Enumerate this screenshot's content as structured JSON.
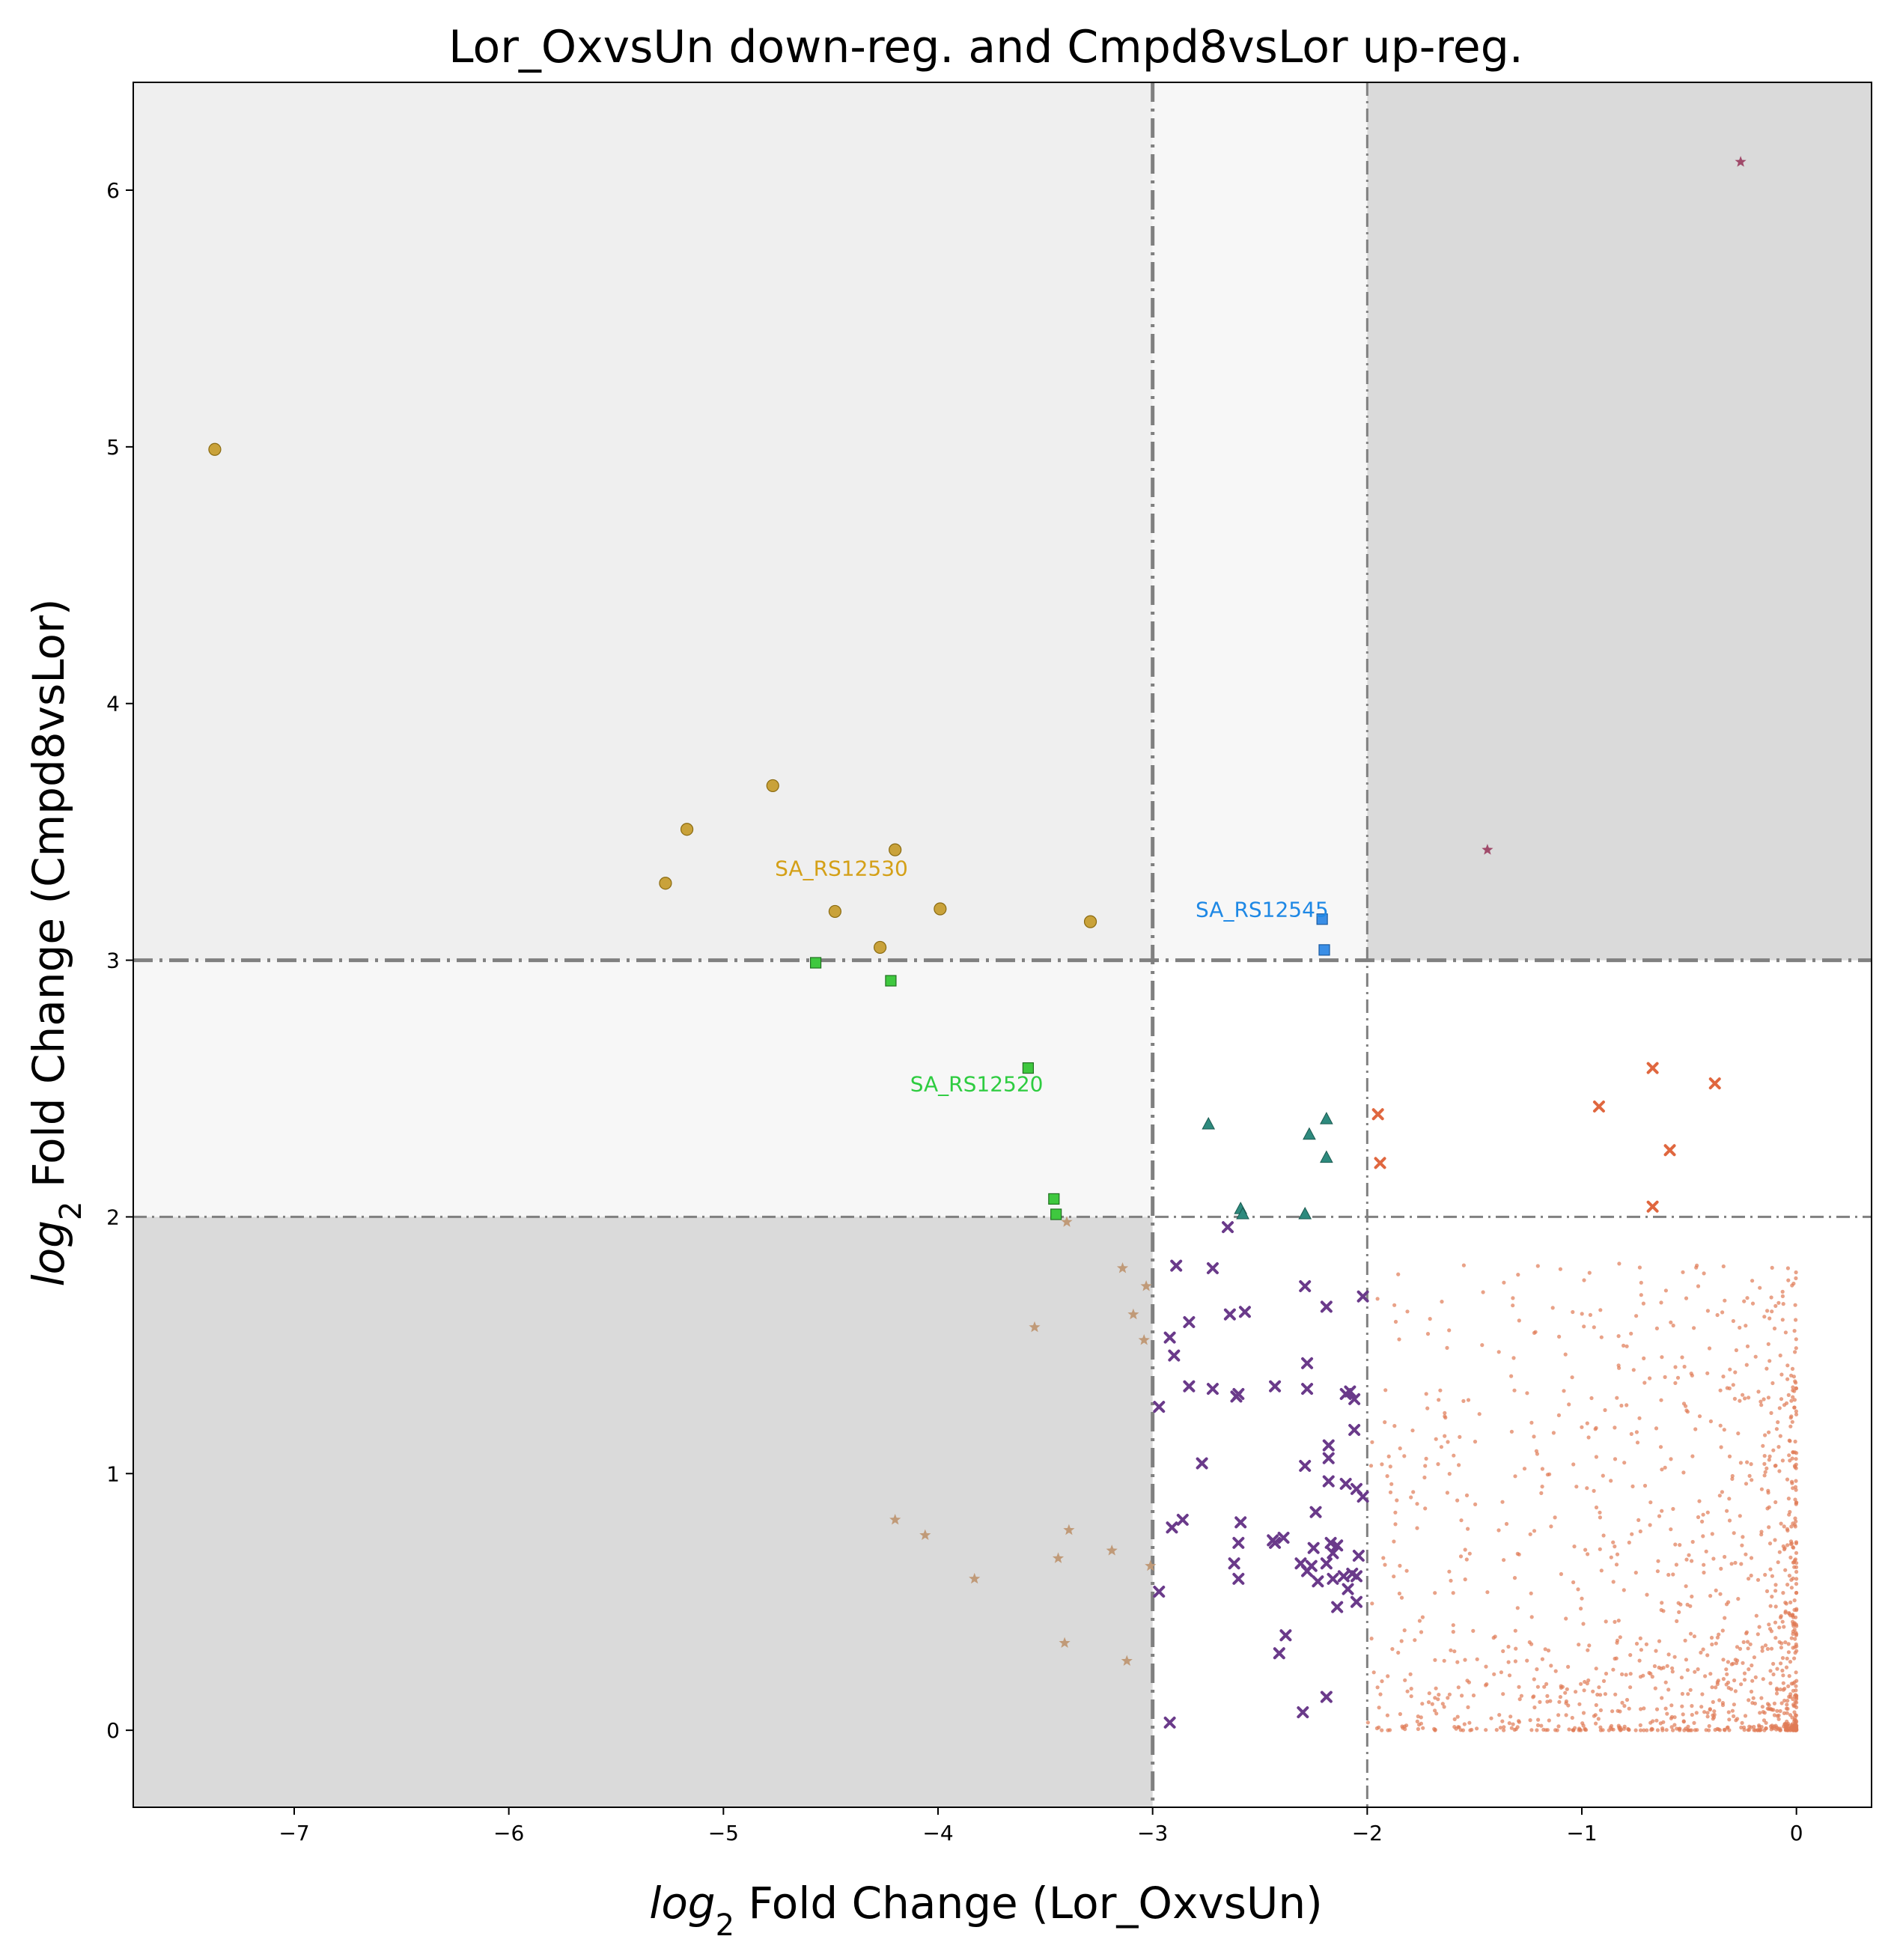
{
  "chart_data": {
    "type": "scatter",
    "title": "Lor_OxvsUn down-reg. and Cmpd8vsLor up-reg.",
    "xlabel_prefix": "log",
    "xlabel_sub": "2",
    "xlabel_rest": " Fold Change (Lor_OxvsUn)",
    "ylabel_prefix": "log",
    "ylabel_sub": "2",
    "ylabel_rest": " Fold Change (Cmpd8vsLor)",
    "xlim": [
      -7.75,
      0.35
    ],
    "ylim": [
      -0.3,
      6.42
    ],
    "x_ticks": [
      -7,
      -6,
      -5,
      -4,
      -3,
      -2,
      -1,
      0
    ],
    "x_tick_labels": [
      "−7",
      "−6",
      "−5",
      "−4",
      "−3",
      "−2",
      "−1",
      "0"
    ],
    "y_ticks": [
      0,
      1,
      2,
      3,
      4,
      5,
      6
    ],
    "y_tick_labels": [
      "0",
      "1",
      "2",
      "3",
      "4",
      "5",
      "6"
    ],
    "grid": false,
    "thresholds": {
      "x_strong": -3,
      "x_weak": -2,
      "y_strong": 3,
      "y_weak": 2
    },
    "regions": [
      {
        "x": [
          -7.75,
          -3
        ],
        "y": [
          2,
          6.42
        ],
        "color": "#efefef"
      },
      {
        "x": [
          -3,
          -2
        ],
        "y": [
          3,
          6.42
        ],
        "color": "#f7f7f7"
      },
      {
        "x": [
          -7.75,
          -3
        ],
        "y": [
          2,
          3
        ],
        "color": "#f7f7f7"
      },
      {
        "x": [
          -2,
          0.35
        ],
        "y": [
          3,
          6.42
        ],
        "color": "#dadada"
      },
      {
        "x": [
          -7.75,
          -3
        ],
        "y": [
          -0.3,
          2
        ],
        "color": "#dadada"
      }
    ],
    "series": [
      {
        "marker": "circle",
        "color": "#c9a23a",
        "edge": "#8a6a10",
        "points": [
          [
            -7.37,
            4.99
          ],
          [
            -4.77,
            3.68
          ],
          [
            -5.17,
            3.51
          ],
          [
            -5.27,
            3.3
          ],
          [
            -4.2,
            3.43
          ],
          [
            -4.48,
            3.19
          ],
          [
            -3.99,
            3.2
          ],
          [
            -4.27,
            3.05
          ],
          [
            -3.29,
            3.15
          ]
        ]
      },
      {
        "marker": "square",
        "color": "#3fc83f",
        "edge": "#207020",
        "points": [
          [
            -4.57,
            2.99
          ],
          [
            -4.22,
            2.92
          ],
          [
            -3.58,
            2.58
          ],
          [
            -3.46,
            2.07
          ],
          [
            -3.45,
            2.01
          ]
        ]
      },
      {
        "marker": "square",
        "color": "#3a8ee6",
        "edge": "#1a5aa0",
        "points": [
          [
            -2.21,
            3.16
          ],
          [
            -2.2,
            3.04
          ]
        ]
      },
      {
        "marker": "triangle",
        "color": "#2e8a7e",
        "edge": "#1a5a50",
        "points": [
          [
            -2.74,
            2.36
          ],
          [
            -2.59,
            2.03
          ],
          [
            -2.27,
            2.32
          ],
          [
            -2.19,
            2.38
          ],
          [
            -2.19,
            2.23
          ],
          [
            -2.58,
            2.01
          ],
          [
            -2.29,
            2.01
          ]
        ]
      },
      {
        "marker": "x",
        "color": "#e0673f",
        "points": [
          [
            -0.67,
            2.58
          ],
          [
            -0.92,
            2.43
          ],
          [
            -0.38,
            2.52
          ],
          [
            -0.59,
            2.26
          ],
          [
            -1.95,
            2.4
          ],
          [
            -1.94,
            2.21
          ],
          [
            -0.67,
            2.04
          ]
        ]
      },
      {
        "marker": "star",
        "color": "#a04a6a",
        "points": [
          [
            -0.26,
            6.11
          ],
          [
            -1.44,
            3.43
          ]
        ]
      },
      {
        "marker": "star",
        "color": "#c09a78",
        "points": [
          [
            -3.4,
            1.98
          ],
          [
            -3.55,
            1.57
          ],
          [
            -3.14,
            1.8
          ],
          [
            -3.09,
            1.62
          ],
          [
            -3.03,
            1.73
          ],
          [
            -3.04,
            1.52
          ],
          [
            -4.2,
            0.82
          ],
          [
            -4.06,
            0.76
          ],
          [
            -3.83,
            0.59
          ],
          [
            -3.39,
            0.78
          ],
          [
            -3.44,
            0.67
          ],
          [
            -3.19,
            0.7
          ],
          [
            -3.01,
            0.64
          ],
          [
            -3.41,
            0.34
          ],
          [
            -3.12,
            0.27
          ]
        ]
      },
      {
        "marker": "x",
        "color": "#6a3a8a",
        "points": [
          [
            -2.65,
            1.96
          ],
          [
            -2.72,
            1.8
          ],
          [
            -2.29,
            1.73
          ],
          [
            -2.89,
            1.81
          ],
          [
            -2.57,
            1.63
          ],
          [
            -2.64,
            1.62
          ],
          [
            -2.92,
            1.53
          ],
          [
            -2.9,
            1.46
          ],
          [
            -2.83,
            1.59
          ],
          [
            -2.19,
            1.65
          ],
          [
            -2.02,
            1.69
          ],
          [
            -2.28,
            1.43
          ],
          [
            -2.28,
            1.33
          ],
          [
            -2.43,
            1.34
          ],
          [
            -2.72,
            1.33
          ],
          [
            -2.83,
            1.34
          ],
          [
            -2.61,
            1.3
          ],
          [
            -2.6,
            1.31
          ],
          [
            -2.1,
            1.31
          ],
          [
            -2.08,
            1.32
          ],
          [
            -2.06,
            1.17
          ],
          [
            -2.06,
            1.29
          ],
          [
            -2.97,
            1.26
          ],
          [
            -2.77,
            1.04
          ],
          [
            -2.18,
            1.11
          ],
          [
            -2.18,
            1.06
          ],
          [
            -2.29,
            1.03
          ],
          [
            -2.18,
            0.97
          ],
          [
            -2.1,
            0.96
          ],
          [
            -2.05,
            0.94
          ],
          [
            -2.02,
            0.91
          ],
          [
            -2.24,
            0.85
          ],
          [
            -2.86,
            0.82
          ],
          [
            -2.59,
            0.81
          ],
          [
            -2.91,
            0.79
          ],
          [
            -2.44,
            0.74
          ],
          [
            -2.43,
            0.73
          ],
          [
            -2.39,
            0.75
          ],
          [
            -2.6,
            0.73
          ],
          [
            -2.17,
            0.73
          ],
          [
            -2.14,
            0.72
          ],
          [
            -2.25,
            0.71
          ],
          [
            -2.16,
            0.69
          ],
          [
            -2.19,
            0.65
          ],
          [
            -2.31,
            0.65
          ],
          [
            -2.26,
            0.64
          ],
          [
            -2.04,
            0.68
          ],
          [
            -2.62,
            0.65
          ],
          [
            -2.28,
            0.62
          ],
          [
            -2.11,
            0.6
          ],
          [
            -2.16,
            0.59
          ],
          [
            -2.23,
            0.58
          ],
          [
            -2.6,
            0.59
          ],
          [
            -2.97,
            0.54
          ],
          [
            -2.09,
            0.55
          ],
          [
            -2.05,
            0.5
          ],
          [
            -2.14,
            0.48
          ],
          [
            -2.38,
            0.37
          ],
          [
            -2.41,
            0.3
          ],
          [
            -2.19,
            0.13
          ],
          [
            -2.3,
            0.07
          ],
          [
            -2.92,
            0.03
          ],
          [
            -2.05,
            0.6
          ],
          [
            -2.07,
            0.61
          ]
        ]
      }
    ],
    "annotations": [
      {
        "text": "SA_RS12530",
        "x": -4.76,
        "y": 3.33,
        "color": "#d4a017"
      },
      {
        "text": "SA_RS12545",
        "x": -2.8,
        "y": 3.17,
        "color": "#1e88e5"
      },
      {
        "text": "SA_RS12520",
        "x": -4.13,
        "y": 2.49,
        "color": "#2ecc40"
      }
    ],
    "background_cluster": {
      "marker": "dot",
      "color": "#e07a55",
      "x_range": [
        -2,
        0
      ],
      "y_range": [
        0,
        1.82
      ],
      "count": 1200,
      "note_density": "dense near x 0, y 0"
    }
  }
}
